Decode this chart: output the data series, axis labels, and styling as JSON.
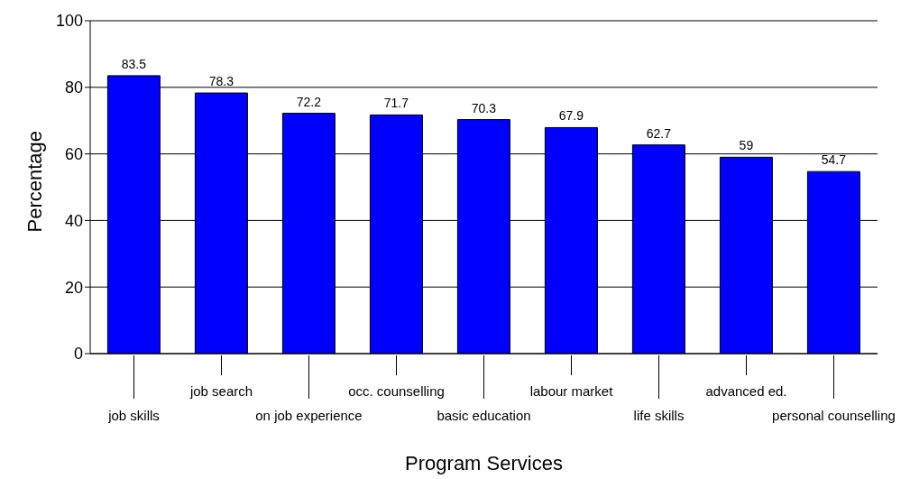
{
  "chart_data": {
    "type": "bar",
    "xlabel": "Program Services",
    "ylabel": "Percentage",
    "categories": [
      "job skills",
      "job search",
      "on job experience",
      "occ. counselling",
      "basic education",
      "labour market",
      "life skills",
      "advanced ed.",
      "personal counselling"
    ],
    "values": [
      83.5,
      78.3,
      72.2,
      71.7,
      70.3,
      67.9,
      62.7,
      59,
      54.7
    ],
    "color": "#0000ff",
    "ylim": [
      0,
      100
    ],
    "yticks": [
      0,
      20,
      40,
      60,
      80,
      100
    ],
    "grid": "y",
    "data_labels": true
  }
}
